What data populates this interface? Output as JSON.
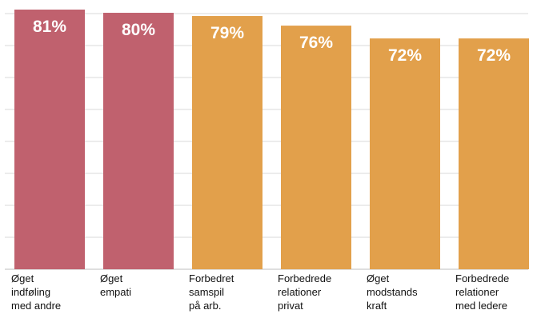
{
  "chart_data": {
    "type": "bar",
    "title": "",
    "xlabel": "",
    "ylabel": "",
    "ylim": [
      0,
      82
    ],
    "grid": true,
    "legend": "none",
    "colors": {
      "highlight": "#c0616e",
      "default": "#e2a04b",
      "grid": "#d9d9d9"
    },
    "categories": [
      [
        "Øget",
        "indføling",
        "med andre"
      ],
      [
        "Øget",
        "empati"
      ],
      [
        "Forbedret",
        "samspil",
        "på arb."
      ],
      [
        "Forbedrede",
        "relationer",
        "privat"
      ],
      [
        "Øget",
        "modstands",
        "kraft"
      ],
      [
        "Forbedrede",
        "relationer",
        "med ledere"
      ]
    ],
    "values": [
      81,
      80,
      79,
      76,
      72,
      72
    ],
    "value_labels": [
      "81%",
      "80%",
      "79%",
      "76%",
      "72%",
      "72%"
    ],
    "bar_color_keys": [
      "highlight",
      "highlight",
      "default",
      "default",
      "default",
      "default"
    ]
  }
}
